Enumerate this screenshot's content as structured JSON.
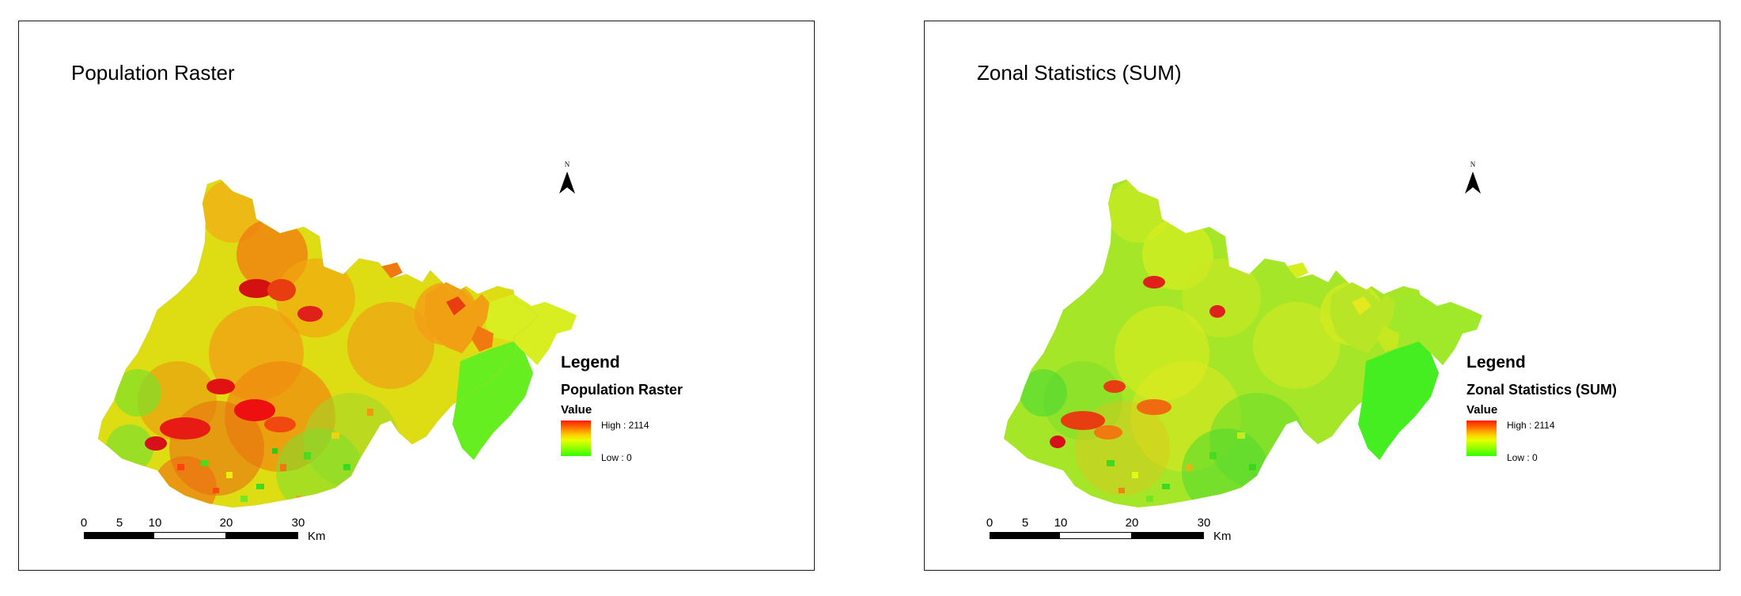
{
  "panels": [
    {
      "title": "Population Raster",
      "legend": {
        "heading": "Legend",
        "layer_name": "Population Raster",
        "field": "Value",
        "high_label": "High : 2114",
        "low_label": "Low : 0"
      },
      "scale": {
        "labels": [
          "0",
          "5",
          "10",
          "20",
          "30"
        ],
        "unit": "Km"
      },
      "north_label": "N",
      "colors": {
        "high": "#ff1a00",
        "low": "#33ff00"
      }
    },
    {
      "title": "Zonal Statistics (SUM)",
      "legend": {
        "heading": "Legend",
        "layer_name": "Zonal Statistics (SUM)",
        "field": "Value",
        "high_label": "High : 2114",
        "low_label": "Low : 0"
      },
      "scale": {
        "labels": [
          "0",
          "5",
          "10",
          "20",
          "30"
        ],
        "unit": "Km"
      },
      "north_label": "N",
      "colors": {
        "high": "#ff1a00",
        "low": "#33ff00"
      }
    }
  ]
}
